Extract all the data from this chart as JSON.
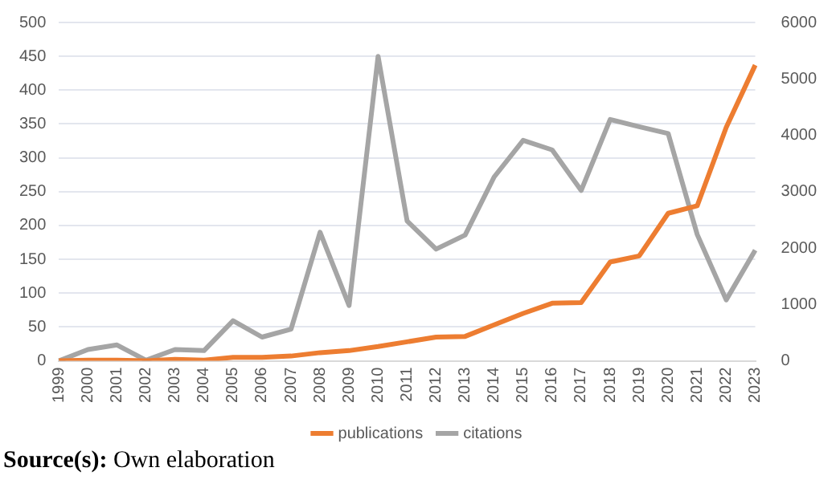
{
  "chart_data": {
    "type": "line",
    "categories": [
      "1999",
      "2000",
      "2001",
      "2002",
      "2003",
      "2004",
      "2005",
      "2006",
      "2007",
      "2008",
      "2009",
      "2010",
      "2011",
      "2012",
      "2013",
      "2014",
      "2015",
      "2016",
      "2017",
      "2018",
      "2019",
      "2020",
      "2021",
      "2022",
      "2023"
    ],
    "series": [
      {
        "name": "publications",
        "color": "#ed7d31",
        "values": [
          0,
          1,
          1,
          0,
          2,
          1,
          5,
          5,
          7,
          12,
          15,
          21,
          28,
          35,
          36,
          53,
          70,
          85,
          86,
          146,
          155,
          218,
          229,
          345,
          437
        ]
      },
      {
        "name": "citations",
        "color": "#a5a5a5",
        "axis": "y2",
        "values": [
          0,
          200,
          280,
          10,
          200,
          180,
          710,
          420,
          560,
          2280,
          980,
          5400,
          2480,
          1980,
          2230,
          3260,
          3910,
          3740,
          3020,
          4280,
          4150,
          4030,
          2240,
          1080,
          1960
        ]
      }
    ],
    "ylim": [
      0,
      500
    ],
    "yticks": [
      0,
      50,
      100,
      150,
      200,
      250,
      300,
      350,
      400,
      450,
      500
    ],
    "y2lim": [
      0,
      6000
    ],
    "y2ticks": [
      0,
      1000,
      2000,
      3000,
      4000,
      5000,
      6000
    ],
    "grid": "y",
    "legend": "bottom",
    "marker": "none",
    "line_style": "solid",
    "annotations": [
      "Source(s): Own elaboration"
    ]
  }
}
